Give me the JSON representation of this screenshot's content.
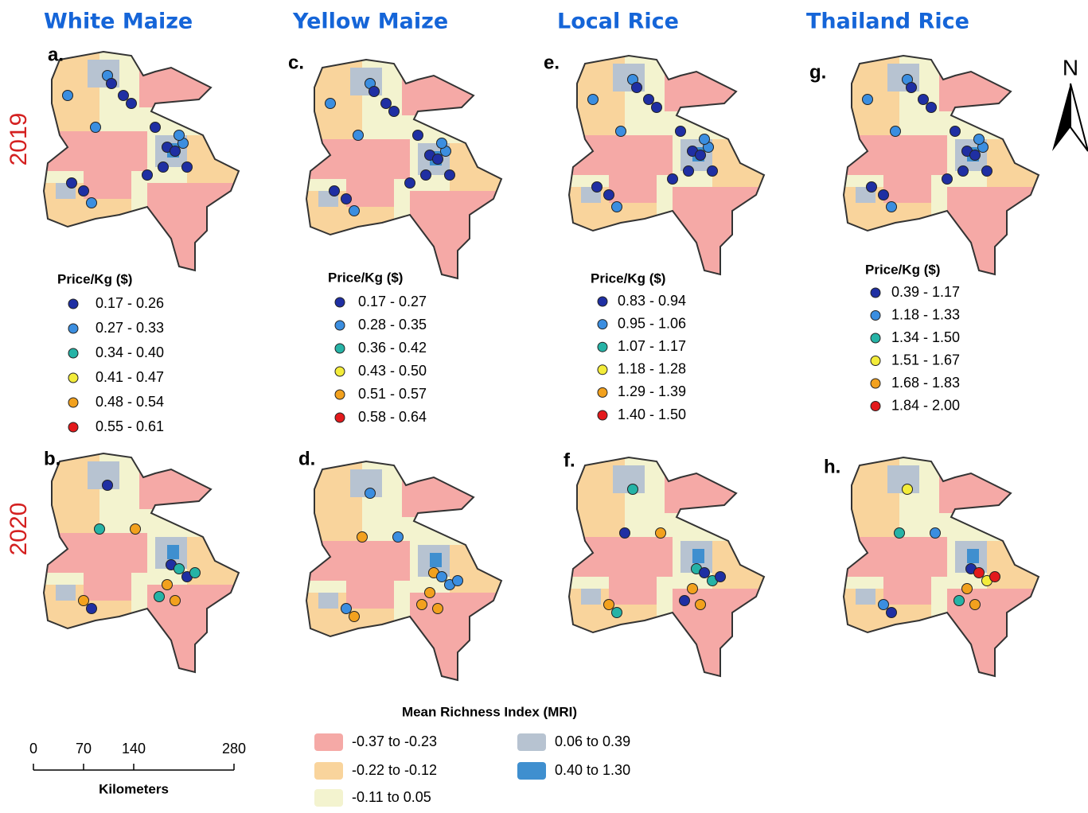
{
  "columns": [
    {
      "title": "White Maize",
      "panels": [
        "a.",
        "b."
      ],
      "legend": {
        "title": "Price/Kg ($)",
        "items": [
          "0.17 - 0.26",
          "0.27 - 0.33",
          "0.34 - 0.40",
          "0.41 - 0.47",
          "0.48 - 0.54",
          "0.55 - 0.61"
        ]
      }
    },
    {
      "title": "Yellow  Maize",
      "panels": [
        "c.",
        "d."
      ],
      "legend": {
        "title": "Price/Kg ($)",
        "items": [
          "0.17 - 0.27",
          "0.28 - 0.35",
          "0.36 - 0.42",
          "0.43 - 0.50",
          "0.51 - 0.57",
          "0.58 - 0.64"
        ]
      }
    },
    {
      "title": "Local Rice",
      "panels": [
        "e.",
        "f."
      ],
      "legend": {
        "title": "Price/Kg ($)",
        "items": [
          "0.83 - 0.94",
          "0.95 - 1.06",
          "1.07 - 1.17",
          "1.18 - 1.28",
          "1.29 - 1.39",
          "1.40 - 1.50"
        ]
      }
    },
    {
      "title": "Thailand Rice",
      "panels": [
        "g.",
        "h."
      ],
      "legend": {
        "title": "Price/Kg ($)",
        "items": [
          "0.39 - 1.17",
          "1.18 - 1.33",
          "1.34 - 1.50",
          "1.51 - 1.67",
          "1.68 - 1.83",
          "1.84 - 2.00"
        ]
      }
    }
  ],
  "price_colors": [
    "#1f2fa3",
    "#3b8ee0",
    "#26b3a6",
    "#f3ec3a",
    "#f2a11e",
    "#e3191c"
  ],
  "rows": [
    "2019",
    "2020"
  ],
  "mri_legend": {
    "title": "Mean Richness Index (MRI)",
    "items": [
      {
        "label": "-0.37 to -0.23",
        "color": "#f5a9a6"
      },
      {
        "label": "-0.22 to -0.12",
        "color": "#f9d49c"
      },
      {
        "label": "-0.11 to 0.05",
        "color": "#f3f3cf"
      },
      {
        "label": "0.06 to 0.39",
        "color": "#b7c3d1"
      },
      {
        "label": "0.40 to 1.30",
        "color": "#3f8fcf"
      }
    ]
  },
  "scale_bar": {
    "ticks": [
      0,
      70,
      140,
      280
    ],
    "unit": "Kilometers"
  },
  "north": "N"
}
